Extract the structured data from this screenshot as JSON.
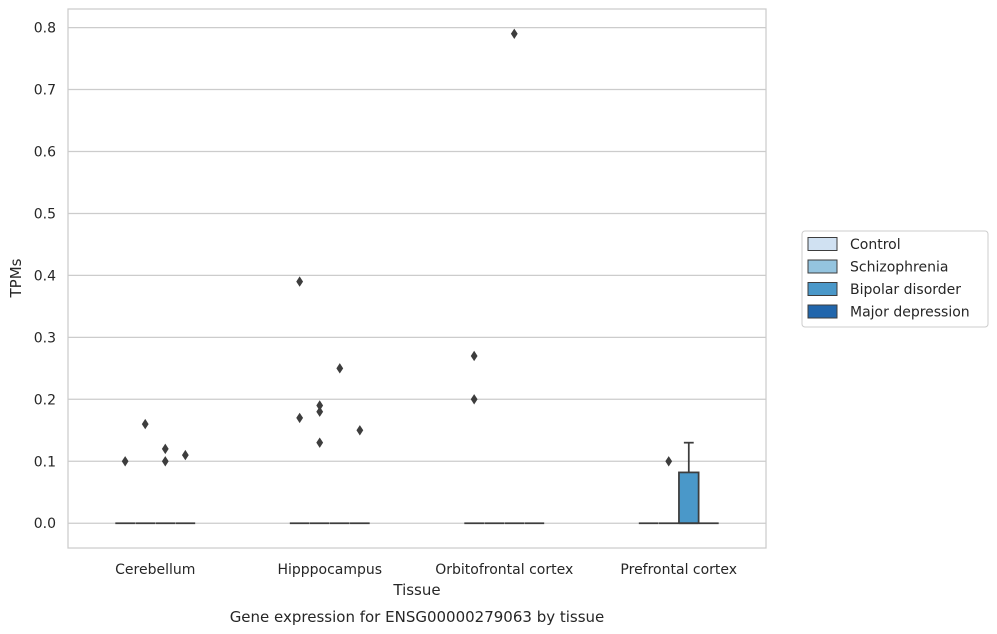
{
  "chart_data": {
    "type": "box",
    "xlabel": "Tissue",
    "ylabel": "TPMs",
    "caption": "Gene expression for ENSG00000279063 by tissue",
    "categories": [
      "Cerebellum",
      "Hipppocampus",
      "Orbitofrontal cortex",
      "Prefrontal cortex"
    ],
    "ylim": [
      -0.04,
      0.83
    ],
    "yticks": [
      0.0,
      0.1,
      0.2,
      0.3,
      0.4,
      0.5,
      0.6,
      0.7,
      0.8
    ],
    "ytick_labels": [
      "0.0",
      "0.1",
      "0.2",
      "0.3",
      "0.4",
      "0.5",
      "0.6",
      "0.7",
      "0.8"
    ],
    "grid": true,
    "legend_position": "outside-right",
    "series": [
      {
        "name": "Control",
        "color": "#d0e1f2",
        "boxes": [
          {
            "q1": 0,
            "median": 0,
            "q3": 0,
            "whislo": 0,
            "whishi": 0,
            "fliers": [
              0.1
            ]
          },
          {
            "q1": 0,
            "median": 0,
            "q3": 0,
            "whislo": 0,
            "whishi": 0,
            "fliers": [
              0.39,
              0.17
            ]
          },
          {
            "q1": 0,
            "median": 0,
            "q3": 0,
            "whislo": 0,
            "whishi": 0,
            "fliers": [
              0.27,
              0.2
            ]
          },
          {
            "q1": 0,
            "median": 0,
            "q3": 0,
            "whislo": 0,
            "whishi": 0,
            "fliers": []
          }
        ]
      },
      {
        "name": "Schizophrenia",
        "color": "#94c4df",
        "boxes": [
          {
            "q1": 0,
            "median": 0,
            "q3": 0,
            "whislo": 0,
            "whishi": 0,
            "fliers": [
              0.16
            ]
          },
          {
            "q1": 0,
            "median": 0,
            "q3": 0,
            "whislo": 0,
            "whishi": 0,
            "fliers": [
              0.19,
              0.18,
              0.13
            ]
          },
          {
            "q1": 0,
            "median": 0,
            "q3": 0,
            "whislo": 0,
            "whishi": 0,
            "fliers": []
          },
          {
            "q1": 0,
            "median": 0,
            "q3": 0,
            "whislo": 0,
            "whishi": 0,
            "fliers": [
              0.1
            ]
          }
        ]
      },
      {
        "name": "Bipolar disorder",
        "color": "#4a98c9",
        "boxes": [
          {
            "q1": 0,
            "median": 0,
            "q3": 0,
            "whislo": 0,
            "whishi": 0,
            "fliers": [
              0.12,
              0.1
            ]
          },
          {
            "q1": 0,
            "median": 0,
            "q3": 0,
            "whislo": 0,
            "whishi": 0,
            "fliers": [
              0.25
            ]
          },
          {
            "q1": 0,
            "median": 0,
            "q3": 0,
            "whislo": 0,
            "whishi": 0,
            "fliers": [
              0.79
            ]
          },
          {
            "q1": 0,
            "median": 0,
            "q3": 0.082,
            "whislo": 0,
            "whishi": 0.13,
            "fliers": []
          }
        ]
      },
      {
        "name": "Major depression",
        "color": "#2166ac",
        "boxes": [
          {
            "q1": 0,
            "median": 0,
            "q3": 0,
            "whislo": 0,
            "whishi": 0,
            "fliers": [
              0.11
            ]
          },
          {
            "q1": 0,
            "median": 0,
            "q3": 0,
            "whislo": 0,
            "whishi": 0,
            "fliers": [
              0.15
            ]
          },
          {
            "q1": 0,
            "median": 0,
            "q3": 0,
            "whislo": 0,
            "whishi": 0,
            "fliers": []
          },
          {
            "q1": 0,
            "median": 0,
            "q3": 0,
            "whislo": 0,
            "whishi": 0,
            "fliers": []
          }
        ]
      }
    ]
  }
}
